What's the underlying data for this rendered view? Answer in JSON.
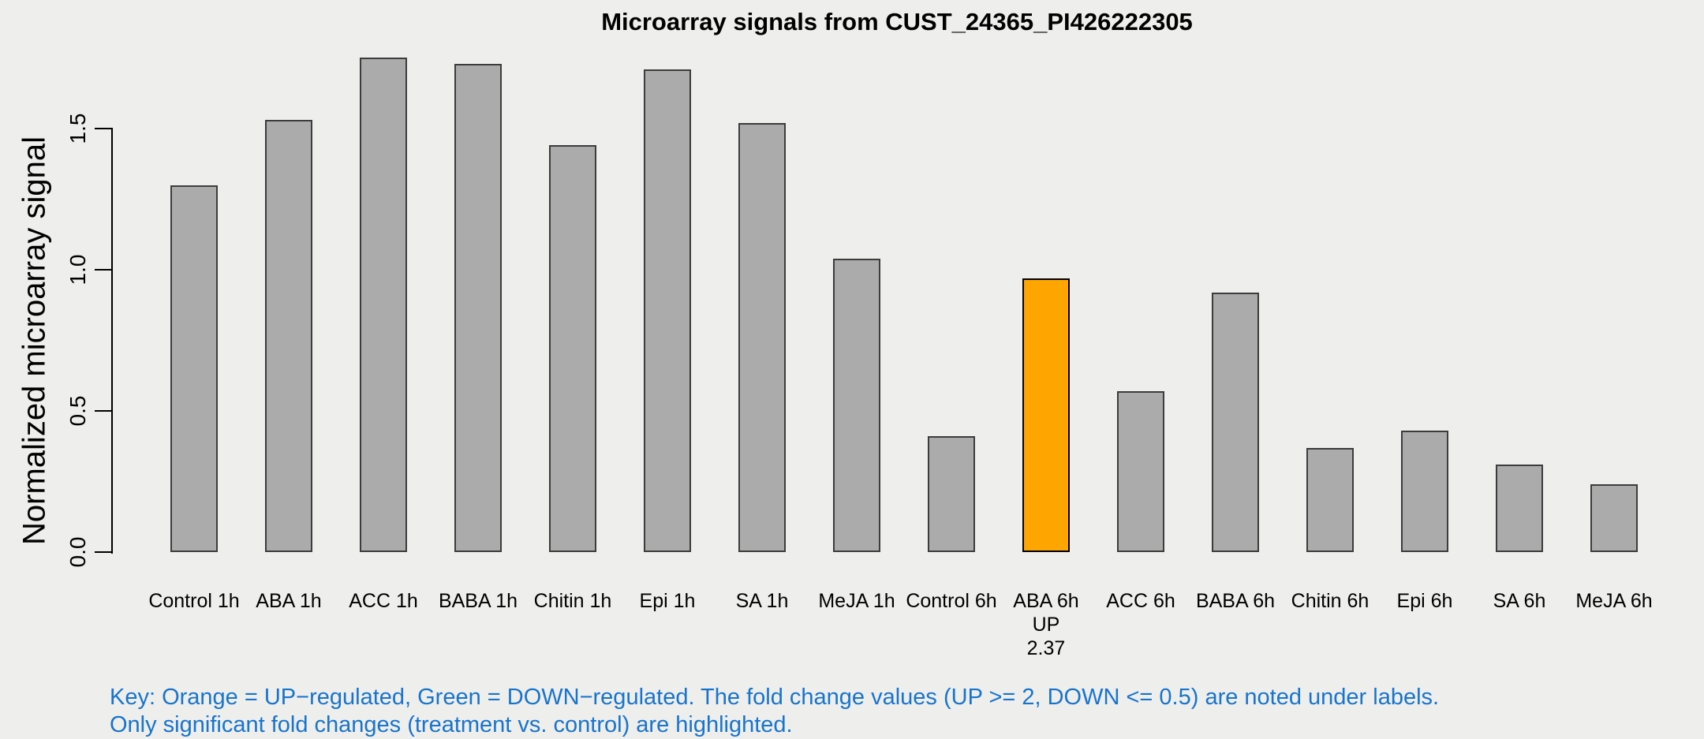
{
  "colors": {
    "background": "#EEEEEC",
    "bar_default": "#ABABAB",
    "bar_border": "#3C3C3C",
    "bar_up": "#FFA500",
    "bar_up_border": "#000000",
    "key_text": "#1874CD",
    "axis": "#000000"
  },
  "chart_data": {
    "type": "bar",
    "title": "Microarray signals from CUST_24365_PI426222305",
    "xlabel": "",
    "ylabel": "Normalized microarray signal",
    "ylim": [
      0,
      1.8
    ],
    "yticks": [
      0.0,
      0.5,
      1.0,
      1.5
    ],
    "grid": false,
    "legend_position": "none",
    "categories": [
      "Control 1h",
      "ABA 1h",
      "ACC 1h",
      "BABA 1h",
      "Chitin 1h",
      "Epi 1h",
      "SA 1h",
      "MeJA 1h",
      "Control 6h",
      "ABA 6h",
      "ACC 6h",
      "BABA 6h",
      "Chitin 6h",
      "Epi 6h",
      "SA 6h",
      "MeJA 6h"
    ],
    "values": [
      1.3,
      1.53,
      1.75,
      1.73,
      1.44,
      1.71,
      1.52,
      1.04,
      0.41,
      0.97,
      0.57,
      0.92,
      0.37,
      0.43,
      0.31,
      0.24
    ],
    "highlight": {
      "category": "ABA 6h",
      "direction": "UP",
      "fold_change": 2.37,
      "note_lines": [
        "UP",
        "2.37"
      ],
      "color": "#FFA500"
    }
  },
  "key": {
    "line1": "Key: Orange = UP−regulated, Green = DOWN−regulated. The fold change values (UP >= 2, DOWN <= 0.5) are noted under labels.",
    "line2": "Only significant fold changes (treatment vs. control) are highlighted."
  }
}
